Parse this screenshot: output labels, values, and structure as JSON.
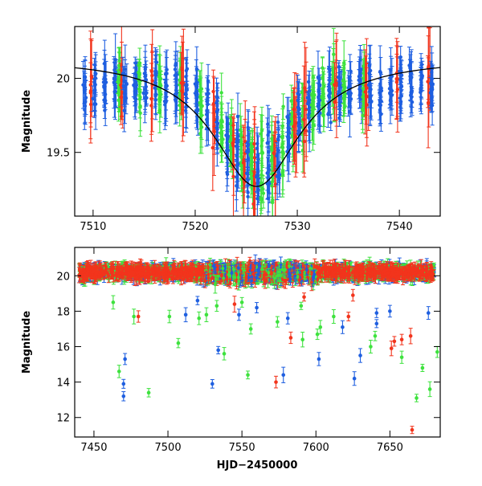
{
  "colors": {
    "blue": "#1f5fe0",
    "green": "#3ee23e",
    "red": "#f2341c",
    "model": "#000000"
  },
  "chart_data": [
    {
      "type": "scatter",
      "ylabel": "Magnitude",
      "xlabel": "",
      "xlim": [
        7508.2,
        7544.0
      ],
      "ylim": [
        20.35,
        19.07
      ],
      "y_inverted": true,
      "xticks": [
        7510,
        7520,
        7530,
        7540
      ],
      "yticks": [
        19.5,
        20
      ],
      "model_curve": {
        "name": "",
        "type": "peaked-lightcurve",
        "x": [
          7509,
          7512,
          7515,
          7518,
          7520,
          7522,
          7524,
          7525,
          7526,
          7527,
          7528,
          7530,
          7532,
          7535,
          7538,
          7541,
          7544
        ],
        "y": [
          20.13,
          20.07,
          19.96,
          19.79,
          19.63,
          19.46,
          19.32,
          19.28,
          19.27,
          19.28,
          19.32,
          19.46,
          19.63,
          19.84,
          19.99,
          20.07,
          20.12
        ]
      },
      "series": [
        {
          "name": "",
          "color": "blue",
          "summary": "dense vertical scatter of points with error bars, 7509-7543, magnitudes mostly 19.1-20.3"
        },
        {
          "name": "",
          "color": "green",
          "summary": "dense vertical scatter of points with error bars, 7512-7537, magnitudes 19.1-20.3"
        },
        {
          "name": "",
          "color": "red",
          "summary": "sparse points with large error bars, 7509-7536, magnitudes 19.1-20.3"
        }
      ]
    },
    {
      "type": "scatter",
      "ylabel": "Magnitude",
      "xlabel": "HJD−2450000",
      "xlim": [
        7437,
        7684
      ],
      "ylim": [
        21.6,
        10.9
      ],
      "y_inverted": true,
      "xticks": [
        7450,
        7500,
        7550,
        7600,
        7650
      ],
      "yticks": [
        12,
        14,
        16,
        18,
        20
      ],
      "baseline_band": {
        "x": [
          7440,
          7680
        ],
        "y_center": 20.2,
        "y_spread": 0.55
      },
      "outliers": {
        "blue": [
          [
            7470,
            13.2
          ],
          [
            7470,
            13.9
          ],
          [
            7471,
            15.3
          ],
          [
            7530,
            13.9
          ],
          [
            7534,
            15.8
          ],
          [
            7548,
            17.8
          ],
          [
            7578,
            14.4
          ],
          [
            7581,
            17.6
          ],
          [
            7602,
            15.3
          ],
          [
            7618,
            17.1
          ],
          [
            7626,
            14.2
          ],
          [
            7630,
            15.5
          ],
          [
            7641,
            17.3
          ],
          [
            7641,
            17.9
          ],
          [
            7650,
            18.0
          ],
          [
            7676,
            17.9
          ],
          [
            7512,
            17.8
          ],
          [
            7520,
            18.6
          ],
          [
            7560,
            18.2
          ]
        ],
        "green": [
          [
            7463,
            18.5
          ],
          [
            7467,
            14.6
          ],
          [
            7477,
            17.7
          ],
          [
            7487,
            13.4
          ],
          [
            7501,
            17.7
          ],
          [
            7507,
            16.2
          ],
          [
            7521,
            17.6
          ],
          [
            7526,
            17.8
          ],
          [
            7533,
            18.3
          ],
          [
            7538,
            15.6
          ],
          [
            7554,
            14.4
          ],
          [
            7556,
            17.0
          ],
          [
            7574,
            17.4
          ],
          [
            7591,
            16.4
          ],
          [
            7601,
            16.7
          ],
          [
            7603,
            17.1
          ],
          [
            7612,
            17.7
          ],
          [
            7637,
            16.0
          ],
          [
            7640,
            16.6
          ],
          [
            7658,
            15.4
          ],
          [
            7668,
            13.1
          ],
          [
            7672,
            14.8
          ],
          [
            7677,
            13.6
          ],
          [
            7682,
            15.7
          ],
          [
            7550,
            18.5
          ],
          [
            7590,
            18.3
          ]
        ],
        "red": [
          [
            7480,
            17.7
          ],
          [
            7573,
            14.0
          ],
          [
            7583,
            16.5
          ],
          [
            7622,
            17.7
          ],
          [
            7651,
            15.9
          ],
          [
            7653,
            16.3
          ],
          [
            7658,
            16.4
          ],
          [
            7664,
            16.6
          ],
          [
            7665,
            11.3
          ],
          [
            7545,
            18.4
          ],
          [
            7592,
            18.8
          ],
          [
            7625,
            18.9
          ]
        ]
      },
      "series": [
        {
          "name": "",
          "color": "blue"
        },
        {
          "name": "",
          "color": "green"
        },
        {
          "name": "",
          "color": "red"
        }
      ]
    }
  ]
}
